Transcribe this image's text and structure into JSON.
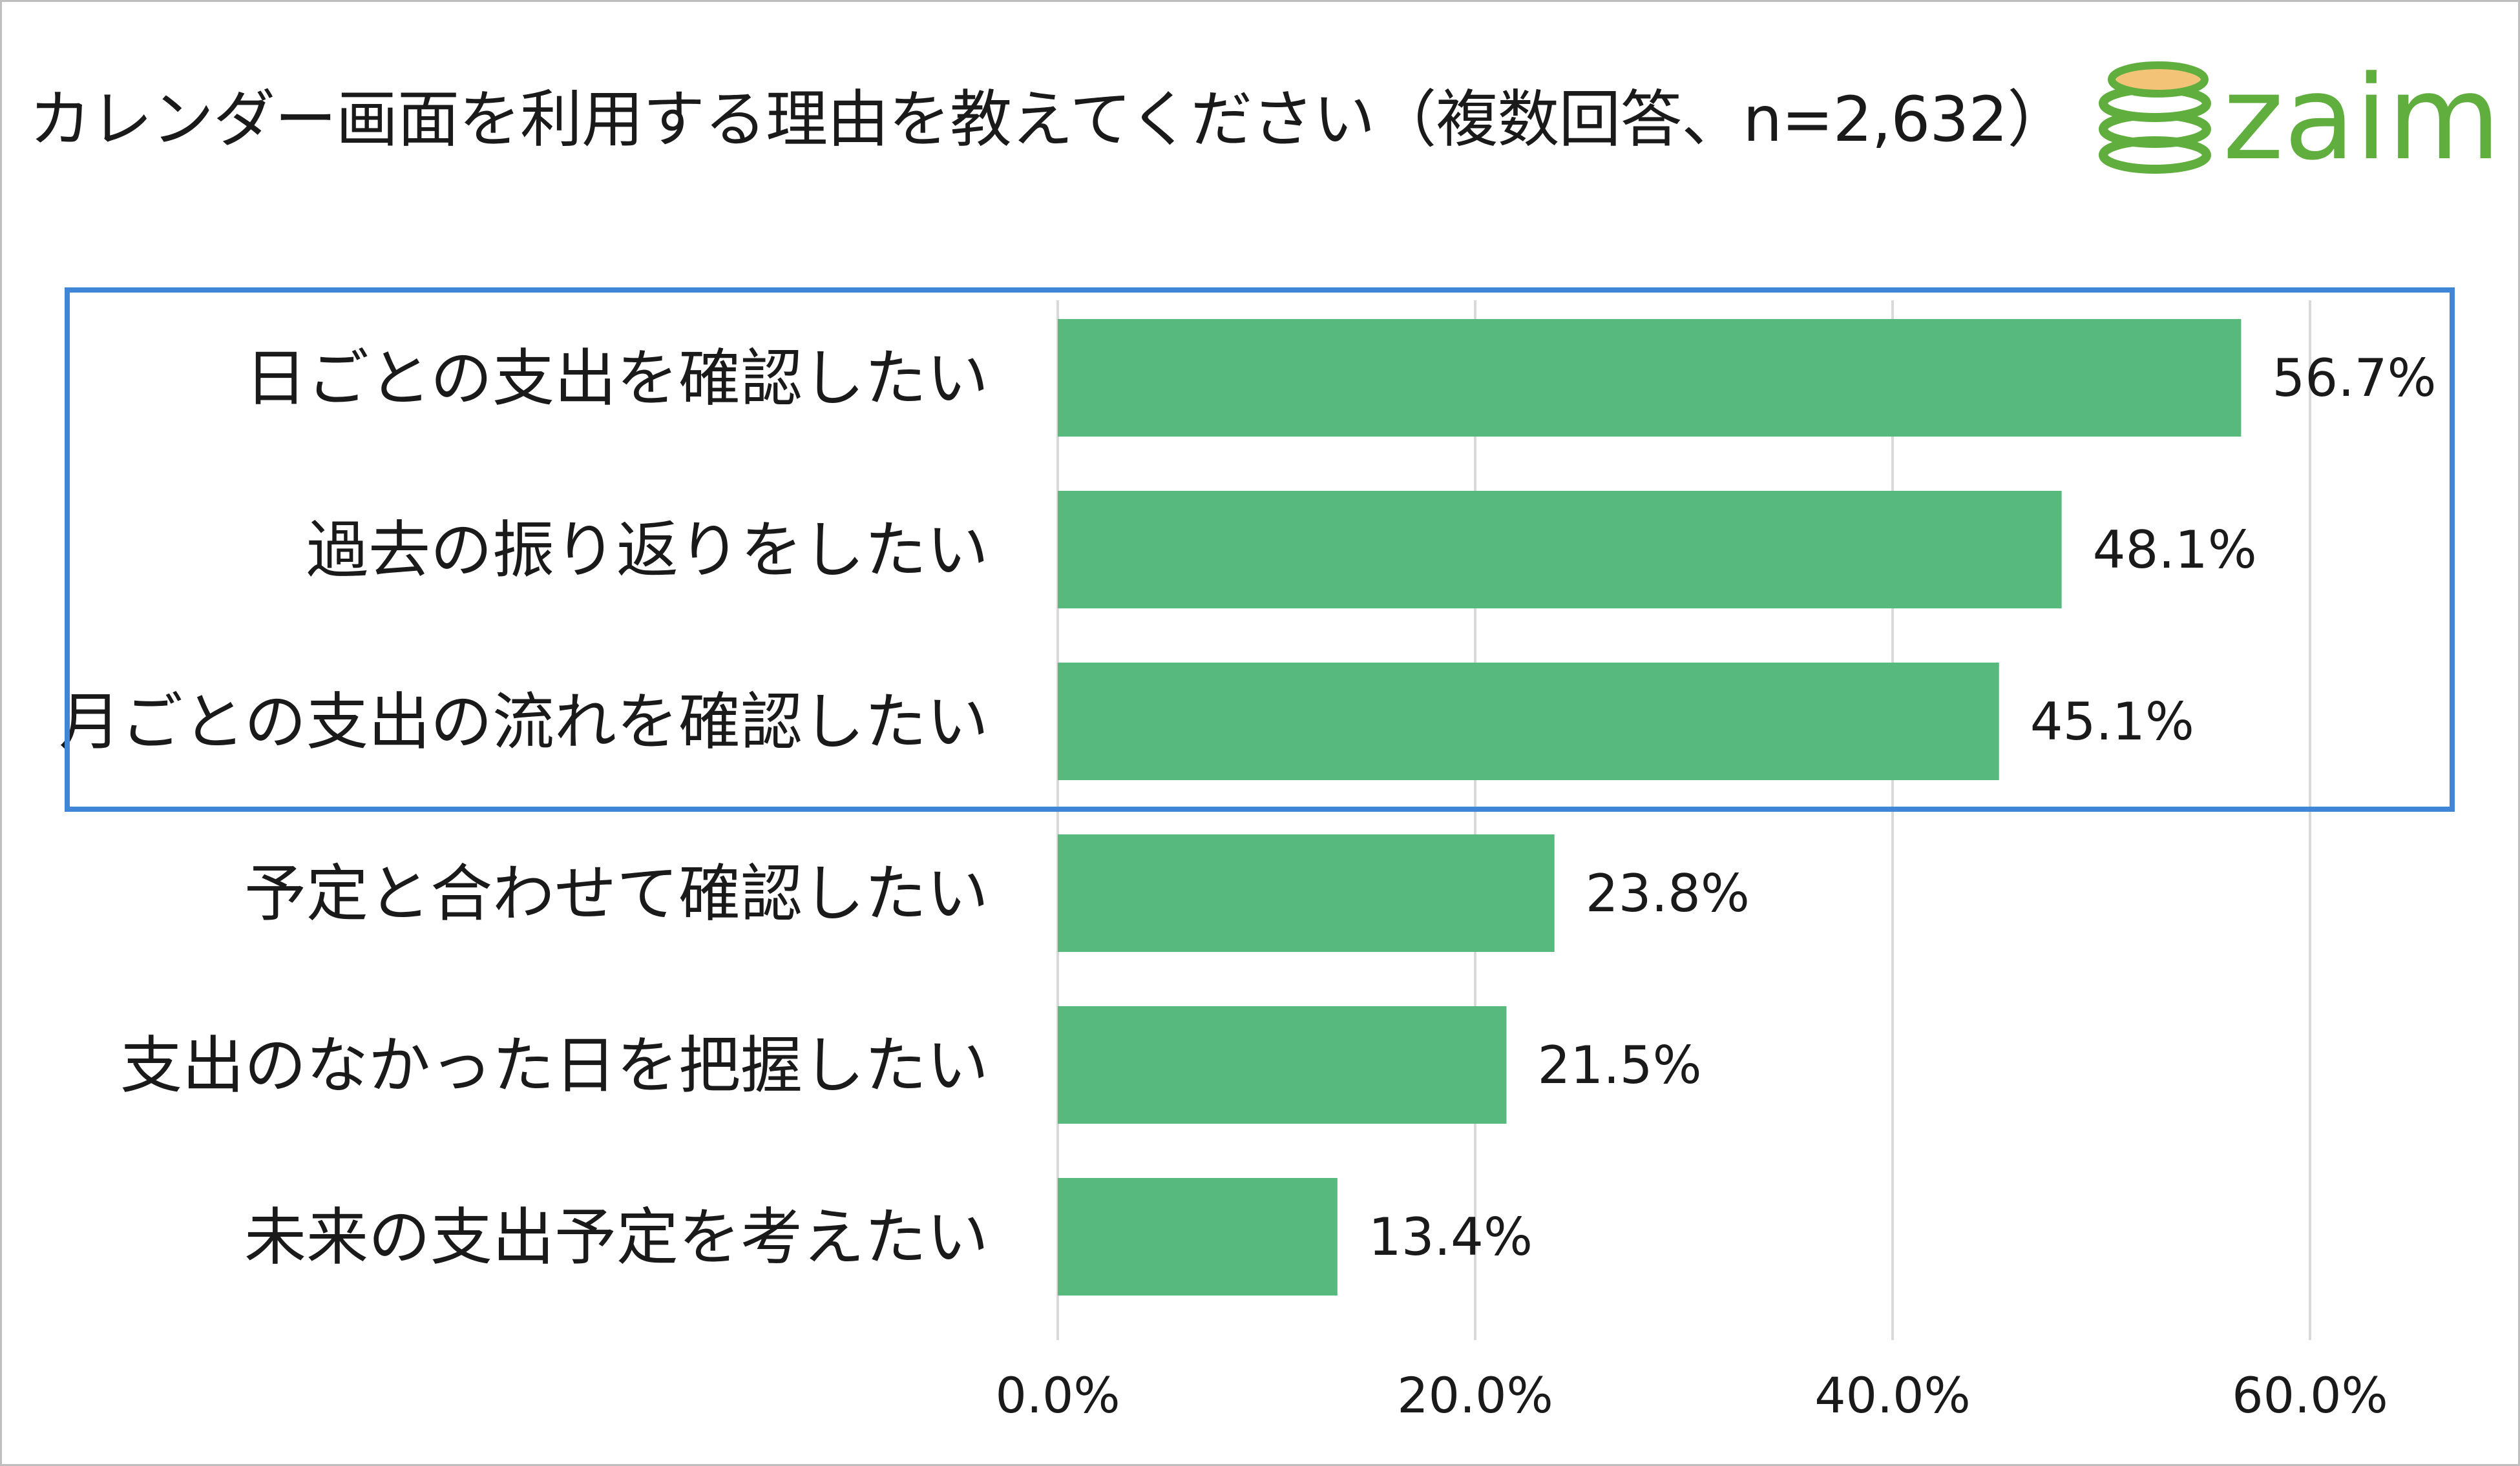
{
  "header": {
    "title": "カレンダー画面を利用する理由を教えてください（複数回答、n=2,632）",
    "logo_text": "zaim"
  },
  "colors": {
    "bar": "#57b97c",
    "highlight_border": "#3f86d9",
    "gridline": "#d9d9d9",
    "logo_green": "#5fae3e",
    "logo_coin": "#f3c378"
  },
  "chart_data": {
    "type": "bar",
    "orientation": "horizontal",
    "categories": [
      "日ごとの支出を確認したい",
      "過去の振り返りをしたい",
      "月ごとの支出の流れを確認したい",
      "予定と合わせて確認したい",
      "支出のなかった日を把握したい",
      "未来の支出予定を考えたい"
    ],
    "values": [
      56.7,
      48.1,
      45.1,
      23.8,
      21.5,
      13.4
    ],
    "value_labels": [
      "56.7%",
      "48.1%",
      "45.1%",
      "23.8%",
      "21.5%",
      "13.4%"
    ],
    "xlim": [
      0,
      60
    ],
    "x_ticks": [
      0,
      20,
      40,
      60
    ],
    "x_tick_labels": [
      "0.0%",
      "20.0%",
      "40.0%",
      "60.0%"
    ],
    "grid": true,
    "highlighted_categories": [
      0,
      1,
      2
    ]
  }
}
